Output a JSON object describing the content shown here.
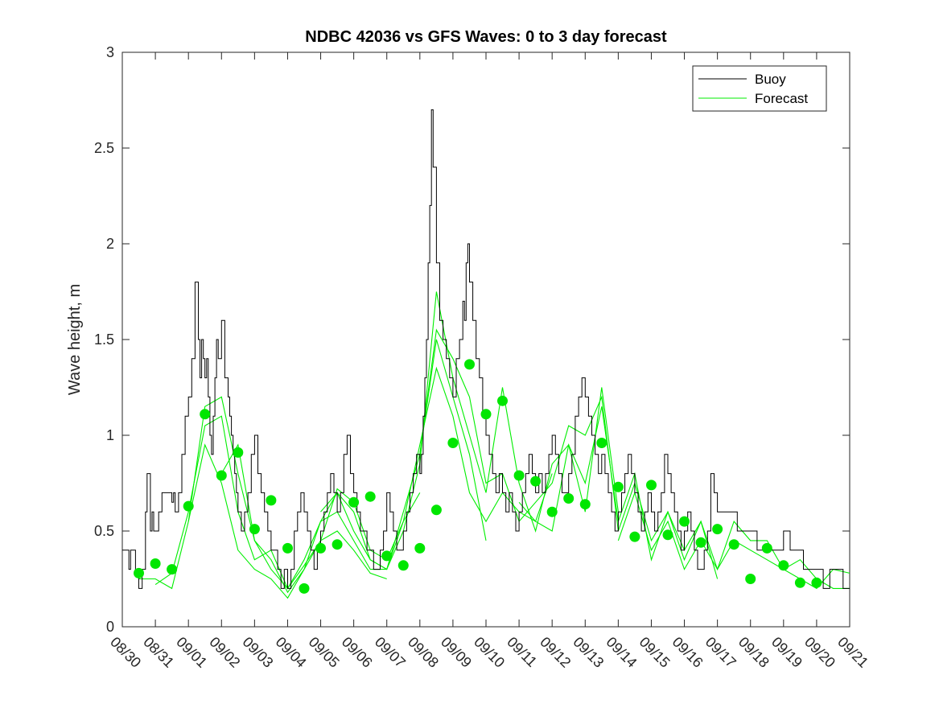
{
  "chart_data": {
    "type": "line",
    "title": "NDBC 42036 vs GFS Waves: 0 to 3 day forecast",
    "xlabel": "",
    "ylabel": "Wave height, m",
    "xlim": [
      0,
      22
    ],
    "ylim": [
      0,
      3
    ],
    "grid": false,
    "legend_position": "top-right",
    "x_ticks": [
      0,
      1,
      2,
      3,
      4,
      5,
      6,
      7,
      8,
      9,
      10,
      11,
      12,
      13,
      14,
      15,
      16,
      17,
      18,
      19,
      20,
      21,
      22
    ],
    "x_tick_labels": [
      "08/30",
      "08/31",
      "09/01",
      "09/02",
      "09/03",
      "09/04",
      "09/05",
      "09/06",
      "09/07",
      "09/08",
      "09/09",
      "09/10",
      "09/11",
      "09/12",
      "09/13",
      "09/14",
      "09/15",
      "09/16",
      "09/17",
      "09/18",
      "09/19",
      "09/20",
      "09/21"
    ],
    "y_ticks": [
      0,
      0.5,
      1,
      1.5,
      2,
      2.5,
      3
    ],
    "y_tick_labels": [
      "0",
      "0.5",
      "1",
      "1.5",
      "2",
      "2.5",
      "3"
    ],
    "legend": [
      "Buoy",
      "Forecast"
    ],
    "colors": {
      "buoy": "#000000",
      "forecast": "#00ee00",
      "marker": "#00e600",
      "axis": "#262626"
    },
    "buoy": {
      "name": "Buoy",
      "x": [
        0,
        0.2,
        0.25,
        0.4,
        0.5,
        0.6,
        0.7,
        0.75,
        0.85,
        0.9,
        0.95,
        1.0,
        1.1,
        1.2,
        1.4,
        1.5,
        1.55,
        1.6,
        1.7,
        1.8,
        1.9,
        2.0,
        2.1,
        2.2,
        2.3,
        2.35,
        2.4,
        2.45,
        2.5,
        2.55,
        2.6,
        2.65,
        2.7,
        2.75,
        2.8,
        2.85,
        2.9,
        3.0,
        3.1,
        3.2,
        3.25,
        3.3,
        3.35,
        3.4,
        3.45,
        3.5,
        3.6,
        3.7,
        3.8,
        3.9,
        4.0,
        4.1,
        4.2,
        4.3,
        4.4,
        4.5,
        4.6,
        4.7,
        4.8,
        4.9,
        5.0,
        5.1,
        5.2,
        5.3,
        5.4,
        5.5,
        5.6,
        5.7,
        5.8,
        5.9,
        6.0,
        6.1,
        6.2,
        6.3,
        6.4,
        6.5,
        6.6,
        6.7,
        6.8,
        6.9,
        7.0,
        7.1,
        7.2,
        7.3,
        7.4,
        7.5,
        7.6,
        7.7,
        7.8,
        7.9,
        8.0,
        8.1,
        8.2,
        8.3,
        8.4,
        8.5,
        8.6,
        8.7,
        8.8,
        8.9,
        9.0,
        9.05,
        9.1,
        9.15,
        9.2,
        9.25,
        9.3,
        9.35,
        9.4,
        9.5,
        9.6,
        9.7,
        9.8,
        9.9,
        10.0,
        10.1,
        10.2,
        10.3,
        10.35,
        10.4,
        10.45,
        10.5,
        10.6,
        10.7,
        10.8,
        10.9,
        11.0,
        11.1,
        11.2,
        11.3,
        11.4,
        11.5,
        11.6,
        11.7,
        11.8,
        11.9,
        12.0,
        12.1,
        12.2,
        12.3,
        12.4,
        12.5,
        12.6,
        12.7,
        12.8,
        12.9,
        13.0,
        13.1,
        13.2,
        13.3,
        13.4,
        13.5,
        13.6,
        13.7,
        13.8,
        13.9,
        14.0,
        14.1,
        14.2,
        14.3,
        14.4,
        14.5,
        14.6,
        14.7,
        14.8,
        14.9,
        15.0,
        15.1,
        15.2,
        15.3,
        15.4,
        15.5,
        15.6,
        15.7,
        15.8,
        15.9,
        16.0,
        16.1,
        16.2,
        16.3,
        16.4,
        16.5,
        16.6,
        16.7,
        16.8,
        16.9,
        17.0,
        17.1,
        17.2,
        17.3,
        17.4,
        17.5,
        17.6,
        17.7,
        17.8,
        17.9,
        18.0,
        18.2,
        18.4,
        18.6,
        18.8,
        19.0,
        19.2,
        19.4,
        19.6,
        19.8,
        20.0,
        20.2,
        20.4,
        20.6,
        20.8,
        21.0,
        21.2,
        21.4,
        21.6,
        21.8,
        22.0
      ],
      "y": [
        0.4,
        0.3,
        0.4,
        0.3,
        0.2,
        0.3,
        0.6,
        0.8,
        0.5,
        0.6,
        0.5,
        0.5,
        0.6,
        0.7,
        0.7,
        0.65,
        0.7,
        0.6,
        0.7,
        0.9,
        1.1,
        1.2,
        1.4,
        1.8,
        1.5,
        1.3,
        1.5,
        1.4,
        1.3,
        1.4,
        1.2,
        1.0,
        0.9,
        1.1,
        1.3,
        1.5,
        1.4,
        1.6,
        1.3,
        1.2,
        1.1,
        1.0,
        0.9,
        0.8,
        0.7,
        0.6,
        0.5,
        0.6,
        0.7,
        0.9,
        1.0,
        0.8,
        0.7,
        0.6,
        0.5,
        0.4,
        0.4,
        0.3,
        0.2,
        0.3,
        0.2,
        0.3,
        0.5,
        0.6,
        0.7,
        0.6,
        0.5,
        0.4,
        0.3,
        0.4,
        0.5,
        0.6,
        0.7,
        0.8,
        0.7,
        0.6,
        0.7,
        0.9,
        1.0,
        0.8,
        0.7,
        0.6,
        0.5,
        0.5,
        0.4,
        0.4,
        0.3,
        0.3,
        0.4,
        0.5,
        0.7,
        0.6,
        0.5,
        0.4,
        0.4,
        0.5,
        0.6,
        0.7,
        0.8,
        0.9,
        0.8,
        0.9,
        1.1,
        1.3,
        1.5,
        1.9,
        2.2,
        2.7,
        2.4,
        1.9,
        1.6,
        1.5,
        1.4,
        1.3,
        1.2,
        1.4,
        1.5,
        1.7,
        1.6,
        1.9,
        2.0,
        1.8,
        1.6,
        1.4,
        1.3,
        1.1,
        1.0,
        0.9,
        0.8,
        0.7,
        0.8,
        0.7,
        0.6,
        0.7,
        0.6,
        0.5,
        0.6,
        0.7,
        0.8,
        0.9,
        0.8,
        0.7,
        0.8,
        0.7,
        0.8,
        0.9,
        1.0,
        0.9,
        0.8,
        0.7,
        0.7,
        0.8,
        0.9,
        1.1,
        1.2,
        1.3,
        1.2,
        1.1,
        1.0,
        0.9,
        0.8,
        0.9,
        0.8,
        0.7,
        0.6,
        0.5,
        0.6,
        0.7,
        0.8,
        0.9,
        0.8,
        0.7,
        0.6,
        0.5,
        0.6,
        0.7,
        0.6,
        0.5,
        0.6,
        0.7,
        0.9,
        0.8,
        0.7,
        0.6,
        0.5,
        0.4,
        0.5,
        0.6,
        0.5,
        0.4,
        0.3,
        0.3,
        0.4,
        0.5,
        0.8,
        0.7,
        0.6,
        0.6,
        0.6,
        0.5,
        0.5,
        0.5,
        0.4,
        0.4,
        0.4,
        0.4,
        0.5,
        0.4,
        0.4,
        0.3,
        0.3,
        0.3,
        0.2,
        0.3,
        0.3,
        0.2,
        0.2
      ]
    },
    "forecast_runs": [
      {
        "name": "Forecast run 1",
        "x": [
          0.5,
          1.0,
          1.5,
          2.0,
          2.5,
          3.0,
          3.5,
          4.0,
          4.5,
          5.0,
          5.5,
          6.0,
          6.5,
          7.0,
          7.5,
          8.0
        ],
        "y": [
          0.25,
          0.25,
          0.2,
          0.55,
          0.95,
          0.75,
          0.4,
          0.3,
          0.25,
          0.15,
          0.3,
          0.45,
          0.5,
          0.4,
          0.28,
          0.25
        ]
      },
      {
        "name": "Forecast run 2",
        "x": [
          1.0,
          1.5,
          2.0,
          2.5,
          3.0,
          3.5,
          4.0,
          4.5,
          5.0,
          5.5,
          6.0,
          6.5,
          7.0,
          7.5,
          8.0,
          8.5,
          9.0
        ],
        "y": [
          0.22,
          0.28,
          0.6,
          1.05,
          1.1,
          0.6,
          0.35,
          0.4,
          0.2,
          0.35,
          0.55,
          0.6,
          0.45,
          0.3,
          0.3,
          0.55,
          0.7
        ]
      },
      {
        "name": "Forecast run 3",
        "x": [
          2.0,
          2.5,
          3.0,
          3.5,
          4.0,
          4.5,
          5.0,
          5.5,
          6.0,
          6.5,
          7.0,
          7.5,
          8.0,
          8.5,
          9.0,
          9.5,
          10.0,
          10.5,
          11.0
        ],
        "y": [
          0.55,
          1.15,
          1.2,
          0.8,
          0.45,
          0.35,
          0.18,
          0.3,
          0.55,
          0.7,
          0.6,
          0.35,
          0.3,
          0.6,
          0.9,
          1.5,
          1.2,
          0.9,
          0.45
        ]
      },
      {
        "name": "Forecast run 4",
        "x": [
          3.0,
          3.5,
          4.0,
          4.5,
          5.0,
          5.5,
          6.0,
          6.5,
          7.0,
          7.5,
          8.0,
          8.5,
          9.0,
          9.5,
          10.0,
          10.5,
          11.0,
          11.5,
          12.0,
          12.5,
          13.0
        ],
        "y": [
          0.8,
          0.95,
          0.45,
          0.3,
          0.2,
          0.32,
          0.45,
          0.72,
          0.65,
          0.4,
          0.35,
          0.55,
          0.95,
          1.35,
          1.1,
          0.7,
          0.55,
          0.7,
          0.6,
          0.55,
          0.8
        ]
      },
      {
        "name": "Forecast run 5",
        "x": [
          6.0,
          6.5,
          7.0,
          7.5,
          8.0,
          8.5,
          9.0,
          9.5,
          10.0,
          10.5,
          11.0,
          11.5,
          12.0,
          12.5,
          13.0,
          13.5,
          14.0,
          14.5,
          15.0
        ],
        "y": [
          0.6,
          0.7,
          0.5,
          0.35,
          0.3,
          0.5,
          0.85,
          1.75,
          1.3,
          1.0,
          0.7,
          1.25,
          0.75,
          0.5,
          0.85,
          0.95,
          0.6,
          1.25,
          0.6
        ]
      },
      {
        "name": "Forecast run 6",
        "x": [
          9.0,
          9.5,
          10.0,
          10.5,
          11.0,
          11.5,
          12.0,
          12.5,
          13.0,
          13.5,
          14.0,
          14.5,
          15.0,
          15.5,
          16.0,
          16.5,
          17.0,
          17.5,
          18.0
        ],
        "y": [
          0.9,
          1.55,
          1.4,
          1.2,
          0.75,
          0.8,
          0.55,
          0.65,
          0.75,
          1.05,
          1.0,
          1.2,
          0.5,
          0.75,
          0.45,
          0.6,
          0.35,
          0.55,
          0.25
        ]
      },
      {
        "name": "Forecast run 7",
        "x": [
          12.0,
          12.5,
          13.0,
          13.5,
          14.0,
          14.5,
          15.0,
          15.5,
          16.0,
          16.5,
          17.0,
          17.5,
          18.0,
          18.5,
          19.0,
          19.5,
          20.0,
          20.5,
          21.0,
          21.5,
          22.0
        ],
        "y": [
          0.65,
          0.55,
          0.5,
          0.95,
          0.75,
          1.15,
          0.55,
          0.8,
          0.35,
          0.6,
          0.4,
          0.55,
          0.3,
          0.55,
          0.45,
          0.45,
          0.3,
          0.25,
          0.2,
          0.3,
          0.28
        ]
      },
      {
        "name": "Forecast run 8",
        "x": [
          15.0,
          15.5,
          16.0,
          16.5,
          17.0,
          17.5,
          18.0,
          18.5,
          19.0,
          19.5,
          20.0,
          20.5,
          21.0,
          21.5,
          22.0
        ],
        "y": [
          0.45,
          0.7,
          0.4,
          0.55,
          0.3,
          0.45,
          0.3,
          0.45,
          0.4,
          0.35,
          0.3,
          0.35,
          0.25,
          0.2,
          0.2
        ]
      }
    ],
    "forecast_markers": {
      "x": [
        0.5,
        1.0,
        1.5,
        2.0,
        2.5,
        3.0,
        3.5,
        4.0,
        4.5,
        5.0,
        5.5,
        6.0,
        6.5,
        7.0,
        7.5,
        8.0,
        8.5,
        9.0,
        9.5,
        10.0,
        10.5,
        11.0,
        11.5,
        12.0,
        12.5,
        13.0,
        13.5,
        14.0,
        14.5,
        15.0,
        15.5,
        16.0,
        16.5,
        17.0,
        17.5,
        18.0,
        18.5,
        19.0,
        19.5,
        20.0,
        20.5,
        21.0
      ],
      "y": [
        0.28,
        0.33,
        0.3,
        0.63,
        1.11,
        0.79,
        0.91,
        0.51,
        0.66,
        0.41,
        0.2,
        0.41,
        0.43,
        0.65,
        0.68,
        0.37,
        0.32,
        0.41,
        0.61,
        0.96,
        1.37,
        1.11,
        1.18,
        0.79,
        0.76,
        0.6,
        0.67,
        0.64,
        0.96,
        0.73,
        0.47,
        0.74,
        0.48,
        0.55,
        0.44,
        0.51,
        0.43,
        0.25,
        0.41,
        0.32,
        0.23,
        0.23
      ]
    }
  }
}
